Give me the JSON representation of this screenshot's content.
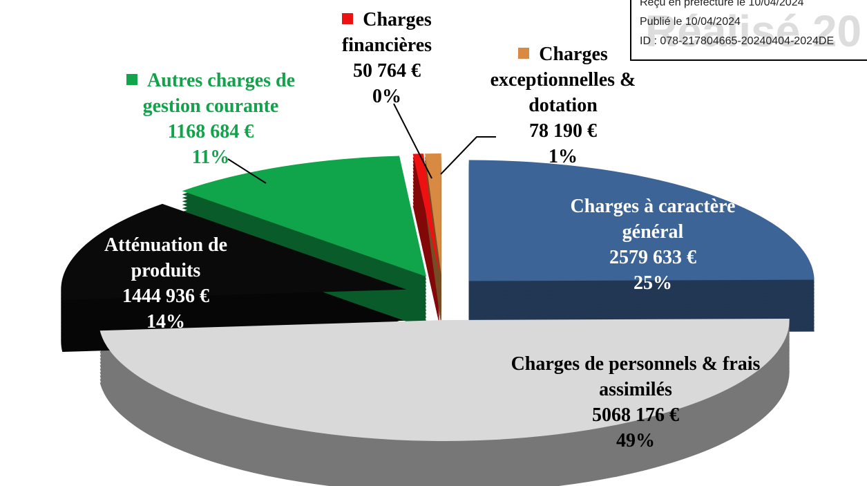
{
  "chart_data": {
    "type": "pie",
    "categories": [
      "Charges à caractère général",
      "Charges de personnels & frais assimilés",
      "Atténuation de produits",
      "Autres charges de gestion courante",
      "Charges financières",
      "Charges exceptionnelles & dotation"
    ],
    "values": [
      2579633,
      5068176,
      1444936,
      1168684,
      50764,
      78190
    ],
    "value_labels": [
      "2579 633 €",
      "5068 176 €",
      "1444 936 €",
      "1168 684 €",
      "50 764 €",
      "78 190 €"
    ],
    "percent_labels": [
      "25%",
      "49%",
      "14%",
      "11%",
      "0%",
      "1%"
    ],
    "colors": [
      "#3c6496",
      "#d9d9d9",
      "#0a0a0a",
      "#10a54b",
      "#ee1111",
      "#d98a42"
    ]
  },
  "stamp": {
    "lines": [
      "Reçu en préfecture le 10/04/2024",
      "Publié le 10/04/2024",
      "ID : 078-217804665-20240404-2024DE"
    ],
    "watermark": "Réalisé 20"
  }
}
